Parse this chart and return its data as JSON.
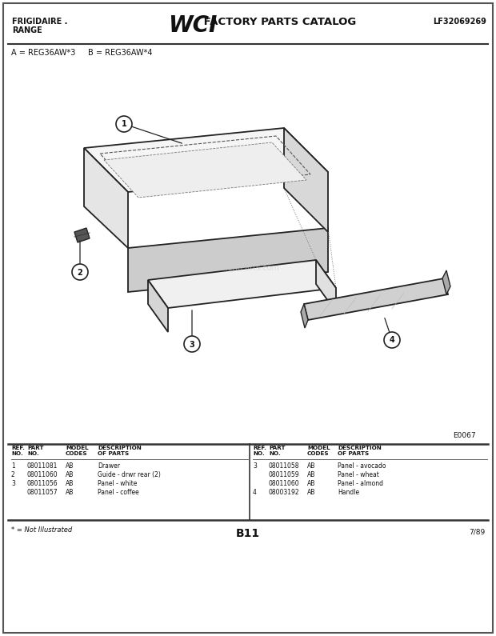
{
  "inner_bg": "#ffffff",
  "title_left1": "FRIGIDAIRE .",
  "title_left2": "RANGE",
  "title_right": "LF32069269",
  "model_codes": "A = REG36AW*3     B = REG36AW*4",
  "diagram_id": "E0067",
  "page_num": "B11",
  "page_date": "7/89",
  "footnote": "* = Not Illustrated",
  "table_rows_left": [
    [
      "1",
      "08011081",
      "AB",
      "Drawer"
    ],
    [
      "2",
      "08011060",
      "AB",
      "Guide - drwr rear (2)"
    ],
    [
      "3",
      "08011056",
      "AB",
      "Panel - white"
    ],
    [
      "",
      "08011057",
      "AB",
      "Panel - coffee"
    ]
  ],
  "table_rows_right": [
    [
      "3",
      "08011058",
      "AB",
      "Panel - avocado"
    ],
    [
      "",
      "08011059",
      "AB",
      "Panel - wheat"
    ],
    [
      "",
      "08011060",
      "AB",
      "Panel - almond"
    ],
    [
      "4",
      "08003192",
      "AB",
      "Handle"
    ]
  ]
}
